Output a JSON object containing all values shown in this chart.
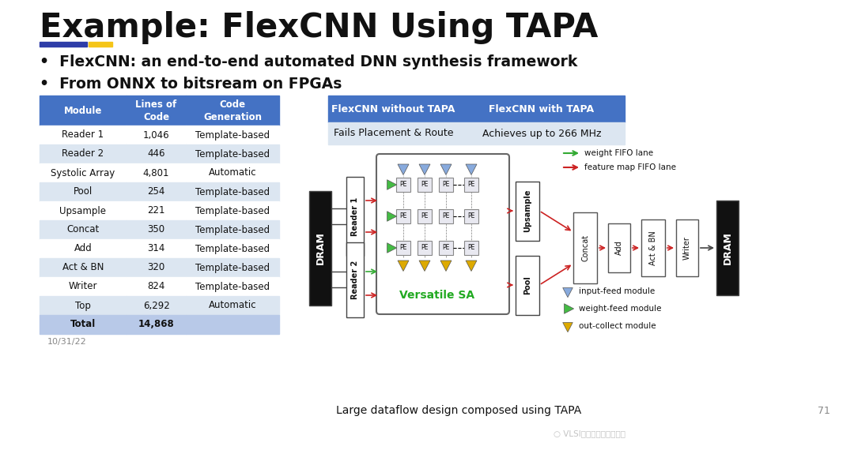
{
  "title": "Example: FlexCNN Using TAPA",
  "bullet1": "FlexCNN: an end-to-end automated DNN synthesis framework",
  "bullet2": "From ONNX to bitsream on FPGAs",
  "accent_color1": "#2E3DA8",
  "accent_color2": "#F5C518",
  "table_header_bg": "#4472C4",
  "table_row_alt_bg": "#DCE6F1",
  "table_row_bg": "#FFFFFF",
  "table_total_bg": "#B8C9E8",
  "table_cols": [
    "Module",
    "Lines of\nCode",
    "Code\nGeneration"
  ],
  "table_rows": [
    [
      "Reader 1",
      "1,046",
      "Template-based"
    ],
    [
      "Reader 2",
      "446",
      "Template-based"
    ],
    [
      "Systolic Array",
      "4,801",
      "Automatic"
    ],
    [
      "Pool",
      "254",
      "Template-based"
    ],
    [
      "Upsample",
      "221",
      "Template-based"
    ],
    [
      "Concat",
      "350",
      "Template-based"
    ],
    [
      "Add",
      "314",
      "Template-based"
    ],
    [
      "Act & BN",
      "320",
      "Template-based"
    ],
    [
      "Writer",
      "824",
      "Template-based"
    ],
    [
      "Top",
      "6,292",
      "Automatic"
    ]
  ],
  "table_total": [
    "Total",
    "14,868",
    ""
  ],
  "compare_header_bg": "#4472C4",
  "compare_col1": "FlexCNN without TAPA",
  "compare_col2": "FlexCNN with TAPA",
  "compare_row1_col1": "Fails Placement & Route",
  "compare_row1_col2": "Achieves up to 266 MHz",
  "date_text": "10/31/22",
  "slide_number": "71",
  "caption": "Large dataflow design composed using TAPA",
  "bg_color": "#FFFFFF"
}
